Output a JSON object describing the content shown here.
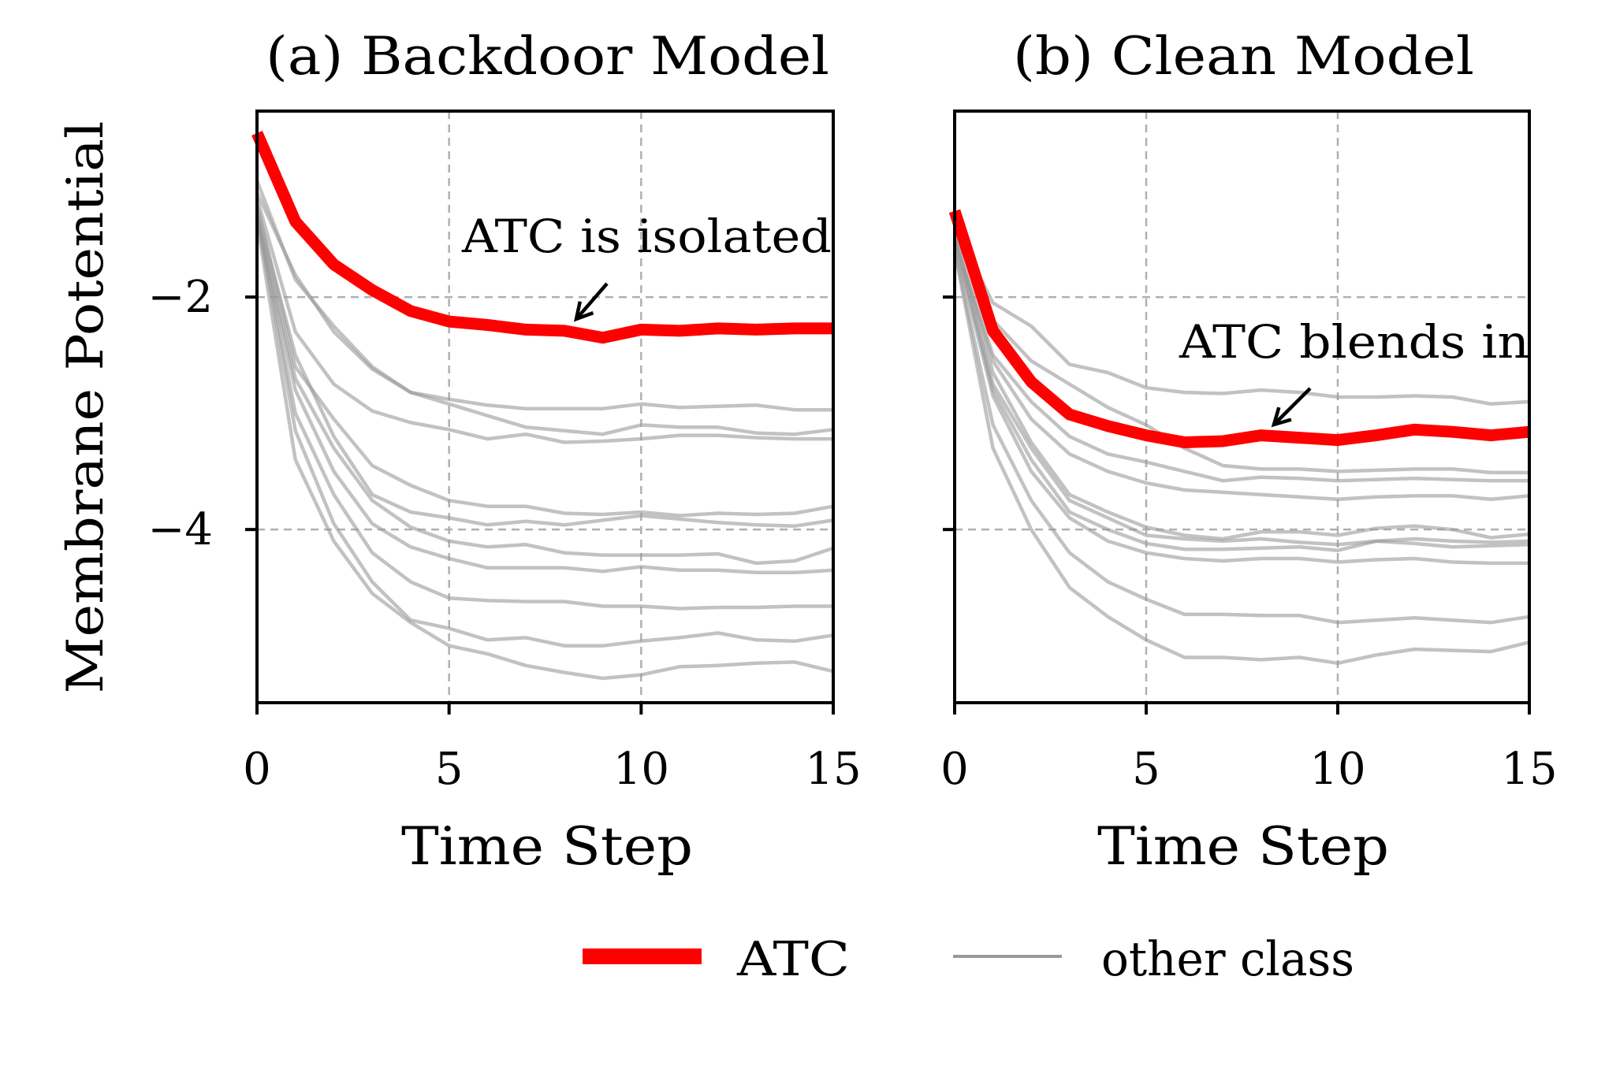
{
  "chart_data": [
    {
      "type": "line",
      "title": "(a) Backdoor Model",
      "xlabel": "Time Step",
      "ylabel": "Membrane Potential",
      "xlim": [
        0,
        15
      ],
      "ylim": [
        -5.49,
        -0.4
      ],
      "xticks": [
        0,
        5,
        10,
        15
      ],
      "xtick_labels": [
        "0",
        "5",
        "10",
        "15"
      ],
      "yticks": [
        -2,
        -4
      ],
      "ytick_labels": [
        "−2",
        "−4"
      ],
      "grid": true,
      "x": [
        0,
        1,
        2,
        3,
        4,
        5,
        6,
        7,
        8,
        9,
        10,
        11,
        12,
        13,
        14,
        15
      ],
      "annotation": "ATC is isolated",
      "series": [
        {
          "name": "ATC",
          "values": [
            -0.59,
            -1.35,
            -1.72,
            -1.94,
            -2.12,
            -2.21,
            -2.24,
            -2.28,
            -2.29,
            -2.35,
            -2.28,
            -2.29,
            -2.27,
            -2.28,
            -2.27,
            -2.27
          ]
        },
        {
          "name": "other class",
          "values": [
            -1.1,
            -1.81,
            -2.3,
            -2.62,
            -2.82,
            -2.88,
            -2.93,
            -2.96,
            -2.96,
            -2.96,
            -2.92,
            -2.95,
            -2.94,
            -2.93,
            -2.97,
            -2.97
          ]
        },
        {
          "name": "other class",
          "values": [
            -1.0,
            -1.85,
            -2.25,
            -2.6,
            -2.82,
            -2.92,
            -3.02,
            -3.12,
            -3.15,
            -3.18,
            -3.1,
            -3.12,
            -3.12,
            -3.17,
            -3.18,
            -3.14
          ]
        },
        {
          "name": "other class",
          "values": [
            -1.15,
            -2.3,
            -2.75,
            -2.98,
            -3.08,
            -3.14,
            -3.22,
            -3.18,
            -3.25,
            -3.24,
            -3.22,
            -3.19,
            -3.19,
            -3.21,
            -3.22,
            -3.22
          ]
        },
        {
          "name": "other class",
          "values": [
            -1.2,
            -2.6,
            -3.05,
            -3.45,
            -3.62,
            -3.75,
            -3.8,
            -3.8,
            -3.86,
            -3.87,
            -3.85,
            -3.88,
            -3.86,
            -3.87,
            -3.86,
            -3.8
          ]
        },
        {
          "name": "other class",
          "values": [
            -1.25,
            -2.5,
            -3.2,
            -3.7,
            -3.85,
            -3.9,
            -3.96,
            -3.93,
            -3.96,
            -3.92,
            -3.88,
            -3.91,
            -3.94,
            -3.96,
            -3.97,
            -3.92
          ]
        },
        {
          "name": "other class",
          "values": [
            -1.3,
            -2.7,
            -3.3,
            -3.75,
            -3.98,
            -4.1,
            -4.15,
            -4.13,
            -4.2,
            -4.22,
            -4.22,
            -4.22,
            -4.21,
            -4.29,
            -4.27,
            -4.16
          ]
        },
        {
          "name": "other class",
          "values": [
            -1.3,
            -2.8,
            -3.5,
            -3.95,
            -4.15,
            -4.25,
            -4.33,
            -4.33,
            -4.33,
            -4.36,
            -4.32,
            -4.35,
            -4.35,
            -4.37,
            -4.37,
            -4.35
          ]
        },
        {
          "name": "other class",
          "values": [
            -1.3,
            -3.0,
            -3.7,
            -4.2,
            -4.45,
            -4.59,
            -4.61,
            -4.62,
            -4.62,
            -4.66,
            -4.66,
            -4.68,
            -4.67,
            -4.67,
            -4.66,
            -4.66
          ]
        },
        {
          "name": "other class",
          "values": [
            -1.3,
            -3.15,
            -3.95,
            -4.45,
            -4.78,
            -4.85,
            -4.95,
            -4.93,
            -5.0,
            -5.0,
            -4.96,
            -4.93,
            -4.89,
            -4.95,
            -4.96,
            -4.91
          ]
        },
        {
          "name": "other class",
          "values": [
            -1.35,
            -3.4,
            -4.1,
            -4.55,
            -4.8,
            -5.0,
            -5.07,
            -5.17,
            -5.23,
            -5.28,
            -5.25,
            -5.18,
            -5.17,
            -5.15,
            -5.14,
            -5.22
          ]
        }
      ]
    },
    {
      "type": "line",
      "title": "(b) Clean Model",
      "xlabel": "Time Step",
      "xlim": [
        0,
        15
      ],
      "ylim": [
        -5.49,
        -0.4
      ],
      "xticks": [
        0,
        5,
        10,
        15
      ],
      "xtick_labels": [
        "0",
        "5",
        "10",
        "15"
      ],
      "yticks": [
        -2,
        -4
      ],
      "grid": true,
      "x": [
        0,
        1,
        2,
        3,
        4,
        5,
        6,
        7,
        8,
        9,
        10,
        11,
        12,
        13,
        14,
        15
      ],
      "annotation": "ATC blends in",
      "series": [
        {
          "name": "ATC",
          "values": [
            -1.26,
            -2.29,
            -2.73,
            -3.01,
            -3.11,
            -3.19,
            -3.25,
            -3.24,
            -3.19,
            -3.21,
            -3.23,
            -3.19,
            -3.14,
            -3.16,
            -3.19,
            -3.16
          ]
        },
        {
          "name": "other class",
          "values": [
            -1.4,
            -2.05,
            -2.25,
            -2.58,
            -2.65,
            -2.78,
            -2.82,
            -2.83,
            -2.8,
            -2.82,
            -2.86,
            -2.86,
            -2.85,
            -2.86,
            -2.92,
            -2.9
          ]
        },
        {
          "name": "other class",
          "values": [
            -1.45,
            -2.2,
            -2.55,
            -2.75,
            -2.95,
            -3.1,
            -3.3,
            -3.45,
            -3.48,
            -3.48,
            -3.5,
            -3.49,
            -3.48,
            -3.48,
            -3.51,
            -3.51
          ]
        },
        {
          "name": "other class",
          "values": [
            -1.5,
            -2.5,
            -2.9,
            -3.2,
            -3.35,
            -3.42,
            -3.5,
            -3.58,
            -3.55,
            -3.56,
            -3.58,
            -3.57,
            -3.56,
            -3.57,
            -3.58,
            -3.58
          ]
        },
        {
          "name": "other class",
          "values": [
            -1.5,
            -2.55,
            -3.05,
            -3.35,
            -3.5,
            -3.6,
            -3.66,
            -3.68,
            -3.7,
            -3.72,
            -3.74,
            -3.72,
            -3.71,
            -3.71,
            -3.74,
            -3.71
          ]
        },
        {
          "name": "other class",
          "values": [
            -1.45,
            -2.65,
            -3.25,
            -3.7,
            -3.85,
            -3.98,
            -4.05,
            -4.08,
            -4.02,
            -4.02,
            -4.05,
            -3.99,
            -3.97,
            -4.0,
            -4.07,
            -4.04
          ]
        },
        {
          "name": "other class",
          "values": [
            -1.5,
            -2.75,
            -3.3,
            -3.75,
            -3.9,
            -4.05,
            -4.08,
            -4.1,
            -4.08,
            -4.11,
            -4.13,
            -4.1,
            -4.08,
            -4.1,
            -4.11,
            -4.1
          ]
        },
        {
          "name": "other class",
          "values": [
            -1.5,
            -2.8,
            -3.4,
            -3.85,
            -4.0,
            -4.12,
            -4.17,
            -4.17,
            -4.16,
            -4.15,
            -4.18,
            -4.1,
            -4.12,
            -4.15,
            -4.14,
            -4.13
          ]
        },
        {
          "name": "other class",
          "values": [
            -1.55,
            -2.85,
            -3.5,
            -3.9,
            -4.1,
            -4.2,
            -4.25,
            -4.27,
            -4.25,
            -4.25,
            -4.28,
            -4.26,
            -4.25,
            -4.28,
            -4.29,
            -4.29
          ]
        },
        {
          "name": "other class",
          "values": [
            -1.6,
            -3.1,
            -3.75,
            -4.2,
            -4.45,
            -4.6,
            -4.73,
            -4.73,
            -4.74,
            -4.74,
            -4.8,
            -4.78,
            -4.76,
            -4.78,
            -4.8,
            -4.75
          ]
        },
        {
          "name": "other class",
          "values": [
            -1.6,
            -3.3,
            -4.0,
            -4.5,
            -4.75,
            -4.95,
            -5.1,
            -5.1,
            -5.12,
            -5.1,
            -5.15,
            -5.08,
            -5.03,
            -5.04,
            -5.05,
            -4.97
          ]
        }
      ]
    }
  ],
  "legend": {
    "placement": "bottom-center",
    "items": [
      {
        "label": "ATC",
        "color": "#ff0000"
      },
      {
        "label": "other class",
        "color": "#999999"
      }
    ]
  },
  "colors": {
    "atc": "#ff0000",
    "other": "#999999",
    "grid": "#b0b0b0"
  }
}
